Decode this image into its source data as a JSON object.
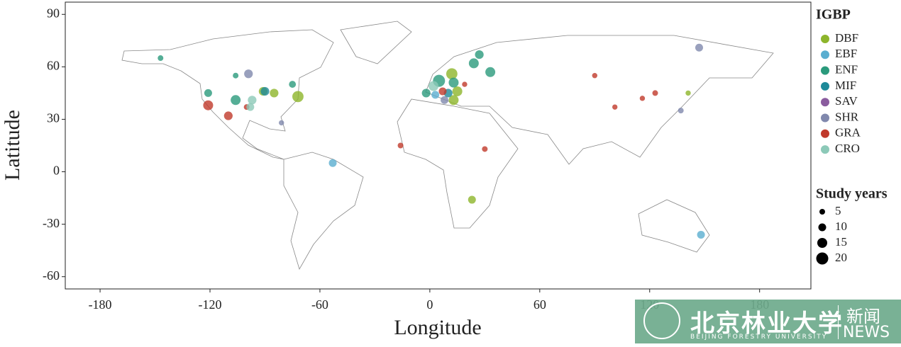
{
  "chart_data": {
    "type": "scatter",
    "x_label": "Longitude",
    "y_label": "Latitude",
    "xlim": [
      -199,
      208
    ],
    "ylim": [
      -67,
      97
    ],
    "xticks": [
      -180,
      -120,
      -60,
      0,
      60,
      120,
      180
    ],
    "yticks": [
      -60,
      -30,
      0,
      30,
      60,
      90
    ],
    "legend_title": "IGBP",
    "legend_position": "right",
    "size_legend": {
      "title": "Study years",
      "values": [
        5,
        10,
        15,
        20
      ]
    },
    "series": [
      {
        "name": "DBF",
        "color": "#8db52b",
        "x": [
          -91,
          -85,
          -72,
          23,
          12,
          13,
          15,
          141
        ],
        "y": [
          46,
          45,
          43,
          -16,
          56,
          41,
          46,
          45
        ],
        "sizes": [
          12,
          12,
          18,
          10,
          18,
          15,
          15,
          4
        ]
      },
      {
        "name": "EBF",
        "color": "#5aaed0",
        "x": [
          -53,
          3,
          148
        ],
        "y": [
          5,
          44,
          -36
        ],
        "sizes": [
          10,
          10,
          10
        ]
      },
      {
        "name": "ENF",
        "color": "#2a9a7c",
        "x": [
          -147,
          -106,
          -121,
          -106,
          -75,
          27,
          24,
          33,
          5,
          -2,
          13
        ],
        "y": [
          65,
          55,
          45,
          41,
          50,
          67,
          62,
          57,
          52,
          45,
          51
        ],
        "sizes": [
          5,
          5,
          10,
          15,
          8,
          12,
          15,
          15,
          20,
          12,
          15
        ]
      },
      {
        "name": "MIF",
        "color": "#1e8a99",
        "x": [
          -90,
          10
        ],
        "y": [
          46,
          45
        ],
        "sizes": [
          12,
          12
        ]
      },
      {
        "name": "SAV",
        "color": "#8a5c9e",
        "x": [],
        "y": [],
        "sizes": []
      },
      {
        "name": "SHR",
        "color": "#8088ad",
        "x": [
          -99,
          -81,
          8,
          137,
          147
        ],
        "y": [
          56,
          28,
          41,
          35,
          71
        ],
        "sizes": [
          12,
          4,
          10,
          5,
          10
        ]
      },
      {
        "name": "GRA",
        "color": "#c0392b",
        "x": [
          -121,
          -110,
          -100,
          -16,
          30,
          7,
          19,
          90,
          101,
          116,
          123
        ],
        "y": [
          38,
          32,
          37,
          15,
          13,
          46,
          50,
          55,
          37,
          42,
          45
        ],
        "sizes": [
          15,
          12,
          5,
          5,
          5,
          10,
          4,
          4,
          4,
          4,
          5
        ]
      },
      {
        "name": "CRO",
        "color": "#8cc9b8",
        "x": [
          -97,
          -98,
          2
        ],
        "y": [
          41,
          37,
          49
        ],
        "sizes": [
          12,
          10,
          15
        ]
      }
    ]
  },
  "watermark": {
    "title": "北京林业大学",
    "subtitle": "BEIJING FORESTRY UNIVERSITY",
    "tag": "新闻",
    "tag_en": "NEWS"
  }
}
